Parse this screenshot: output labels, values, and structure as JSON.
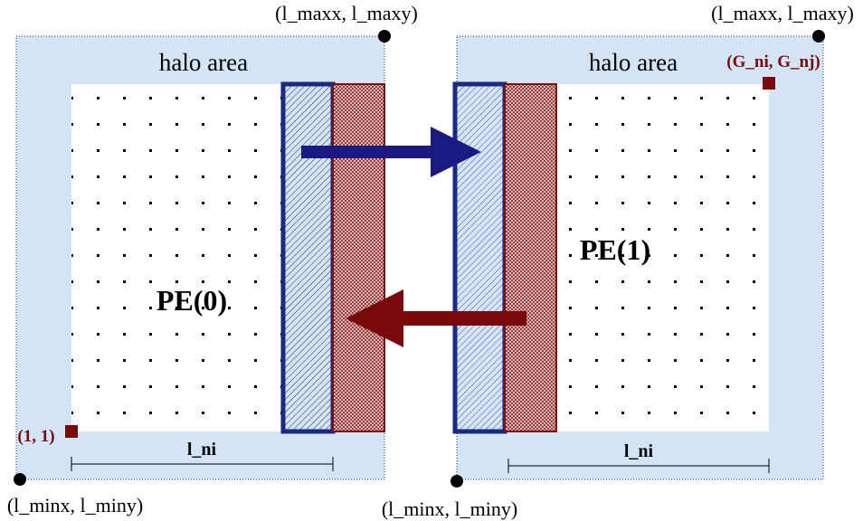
{
  "panels": [
    {
      "max_corner": "(l_maxx, l_maxy)",
      "halo_label": "halo area",
      "pe_label": "PE(0)",
      "origin_label": "(1, 1)",
      "width_label": "l_ni",
      "min_corner": "(l_minx, l_miny)"
    },
    {
      "max_corner": "(l_maxx, l_maxy)",
      "halo_label": "halo area",
      "global_corner": "(G_ni, G_nj)",
      "pe_label": "PE(1)",
      "width_label": "l_ni",
      "min_corner": "(l_minx, l_miny)"
    }
  ]
}
